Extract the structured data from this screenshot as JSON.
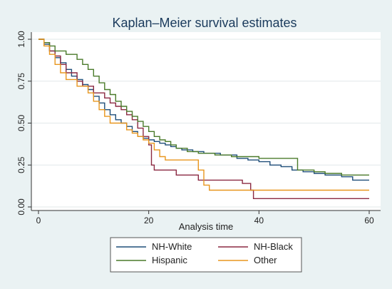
{
  "chart_data": {
    "type": "line",
    "step": true,
    "title": "Kaplan–Meier survival estimates",
    "xlabel": "Analysis time",
    "ylabel": "",
    "xlim": [
      0,
      60
    ],
    "ylim": [
      0,
      1
    ],
    "x_ticks": [
      0,
      20,
      40,
      60
    ],
    "y_ticks": [
      0,
      0.25,
      0.5,
      0.75,
      1
    ],
    "x_tick_labels": [
      "0",
      "20",
      "40",
      "60"
    ],
    "y_tick_labels": [
      "0.00",
      "0.25",
      "0.50",
      "0.75",
      "1.00"
    ],
    "grid": "horizontal",
    "legend_position": "bottom",
    "series": [
      {
        "name": "NH-White",
        "color": "#1f4e79",
        "points": [
          [
            0,
            1
          ],
          [
            1,
            0.97
          ],
          [
            2,
            0.93
          ],
          [
            3,
            0.89
          ],
          [
            4,
            0.86
          ],
          [
            5,
            0.82
          ],
          [
            6,
            0.78
          ],
          [
            7,
            0.76
          ],
          [
            8,
            0.73
          ],
          [
            9,
            0.7
          ],
          [
            10,
            0.66
          ],
          [
            11,
            0.62
          ],
          [
            12,
            0.58
          ],
          [
            13,
            0.55
          ],
          [
            14,
            0.52
          ],
          [
            15,
            0.5
          ],
          [
            16,
            0.48
          ],
          [
            17,
            0.45
          ],
          [
            18,
            0.42
          ],
          [
            19,
            0.41
          ],
          [
            20,
            0.4
          ],
          [
            21,
            0.39
          ],
          [
            22,
            0.38
          ],
          [
            23,
            0.37
          ],
          [
            24,
            0.36
          ],
          [
            25,
            0.35
          ],
          [
            26,
            0.34
          ],
          [
            28,
            0.33
          ],
          [
            30,
            0.32
          ],
          [
            33,
            0.31
          ],
          [
            36,
            0.29
          ],
          [
            38,
            0.28
          ],
          [
            40,
            0.27
          ],
          [
            42,
            0.25
          ],
          [
            44,
            0.24
          ],
          [
            46,
            0.22
          ],
          [
            48,
            0.21
          ],
          [
            50,
            0.2
          ],
          [
            52,
            0.19
          ],
          [
            55,
            0.18
          ],
          [
            57,
            0.16
          ],
          [
            60,
            0.16
          ]
        ]
      },
      {
        "name": "NH-Black",
        "color": "#8b2942",
        "points": [
          [
            0,
            1
          ],
          [
            1,
            0.98
          ],
          [
            2,
            0.93
          ],
          [
            3,
            0.9
          ],
          [
            4,
            0.85
          ],
          [
            5,
            0.8
          ],
          [
            7,
            0.75
          ],
          [
            8,
            0.72
          ],
          [
            10,
            0.68
          ],
          [
            12,
            0.65
          ],
          [
            13,
            0.62
          ],
          [
            14,
            0.6
          ],
          [
            15,
            0.58
          ],
          [
            16,
            0.55
          ],
          [
            17,
            0.52
          ],
          [
            18,
            0.47
          ],
          [
            19,
            0.42
          ],
          [
            20,
            0.37
          ],
          [
            20.5,
            0.25
          ],
          [
            21,
            0.22
          ],
          [
            25,
            0.19
          ],
          [
            29,
            0.16
          ],
          [
            37,
            0.14
          ],
          [
            38.5,
            0.1
          ],
          [
            39,
            0.05
          ],
          [
            60,
            0.05
          ]
        ]
      },
      {
        "name": "Hispanic",
        "color": "#4a7a2a",
        "points": [
          [
            0,
            1
          ],
          [
            1,
            0.98
          ],
          [
            2,
            0.96
          ],
          [
            3,
            0.93
          ],
          [
            5,
            0.91
          ],
          [
            7,
            0.88
          ],
          [
            8,
            0.85
          ],
          [
            9,
            0.82
          ],
          [
            10,
            0.78
          ],
          [
            11,
            0.74
          ],
          [
            12,
            0.7
          ],
          [
            13,
            0.67
          ],
          [
            14,
            0.63
          ],
          [
            15,
            0.6
          ],
          [
            16,
            0.57
          ],
          [
            17,
            0.54
          ],
          [
            18,
            0.51
          ],
          [
            19,
            0.48
          ],
          [
            20,
            0.45
          ],
          [
            21,
            0.42
          ],
          [
            22,
            0.4
          ],
          [
            23,
            0.39
          ],
          [
            24,
            0.37
          ],
          [
            25,
            0.35
          ],
          [
            27,
            0.33
          ],
          [
            29,
            0.32
          ],
          [
            32,
            0.31
          ],
          [
            35,
            0.3
          ],
          [
            40,
            0.29
          ],
          [
            47,
            0.22
          ],
          [
            50,
            0.21
          ],
          [
            52,
            0.2
          ],
          [
            55,
            0.19
          ],
          [
            60,
            0.19
          ]
        ]
      },
      {
        "name": "Other",
        "color": "#e8961e",
        "points": [
          [
            0,
            1
          ],
          [
            1,
            0.96
          ],
          [
            2,
            0.91
          ],
          [
            3,
            0.85
          ],
          [
            4,
            0.8
          ],
          [
            5,
            0.76
          ],
          [
            7,
            0.72
          ],
          [
            9,
            0.68
          ],
          [
            10,
            0.63
          ],
          [
            11,
            0.58
          ],
          [
            12,
            0.54
          ],
          [
            13,
            0.5
          ],
          [
            15,
            0.5
          ],
          [
            16,
            0.46
          ],
          [
            17,
            0.44
          ],
          [
            18,
            0.42
          ],
          [
            19,
            0.4
          ],
          [
            20,
            0.38
          ],
          [
            21,
            0.34
          ],
          [
            22,
            0.3
          ],
          [
            23,
            0.28
          ],
          [
            24,
            0.28
          ],
          [
            28,
            0.28
          ],
          [
            29,
            0.22
          ],
          [
            30,
            0.13
          ],
          [
            31,
            0.1
          ],
          [
            60,
            0.1
          ]
        ]
      }
    ]
  }
}
